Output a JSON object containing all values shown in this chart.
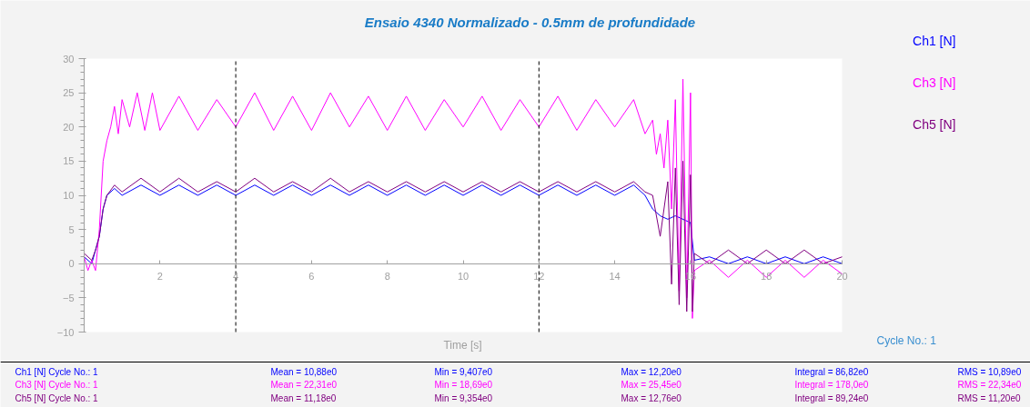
{
  "chart_data": {
    "type": "line",
    "title": "Ensaio 4340 Normalizado - 0.5mm de profundidade",
    "xlabel": "Time [s]",
    "xlim": [
      0,
      20
    ],
    "xticks": [
      2,
      4,
      6,
      8,
      10,
      12,
      14,
      16,
      18,
      20
    ],
    "ylim": [
      -10,
      30
    ],
    "yticks": [
      -10,
      -5,
      0,
      5,
      10,
      15,
      20,
      25,
      30
    ],
    "grid": false,
    "line_style": "solid",
    "marker": "none",
    "series": [
      {
        "name": "Ch1 [N]",
        "color": "#0000ff",
        "x": [
          0,
          0.2,
          0.3,
          0.4,
          0.5,
          0.6,
          0.8,
          1,
          1.5,
          2,
          2.5,
          3,
          3.5,
          4,
          4.5,
          5,
          5.5,
          6,
          6.5,
          7,
          7.5,
          8,
          8.5,
          9,
          9.5,
          10,
          10.5,
          11,
          11.5,
          12,
          12.5,
          13,
          13.5,
          14,
          14.5,
          14.8,
          15,
          15.2,
          15.4,
          15.6,
          16,
          16.1,
          16.5,
          17,
          17.5,
          18,
          18.5,
          19,
          19.5,
          20
        ],
        "values": [
          1,
          0,
          2,
          4,
          8,
          10,
          11,
          10,
          11.5,
          10,
          11.5,
          10,
          11.5,
          10,
          11.5,
          10,
          11.5,
          10,
          11.5,
          10,
          11.5,
          10,
          11.5,
          10,
          11.5,
          10,
          11.5,
          10,
          11.5,
          10,
          11.5,
          10,
          11.5,
          10,
          11.5,
          10,
          8,
          7,
          6.5,
          7,
          6,
          0.5,
          1,
          0,
          1,
          0,
          1,
          0,
          1,
          0
        ]
      },
      {
        "name": "Ch3 [N]",
        "color": "#ff00ff",
        "x": [
          0,
          0.1,
          0.2,
          0.3,
          0.4,
          0.5,
          0.6,
          0.7,
          0.8,
          0.9,
          1,
          1.2,
          1.4,
          1.6,
          1.8,
          2,
          2.5,
          3,
          3.5,
          4,
          4.5,
          5,
          5.5,
          6,
          6.5,
          7,
          7.5,
          8,
          8.5,
          9,
          9.5,
          10,
          10.5,
          11,
          11.5,
          12,
          12.5,
          13,
          13.5,
          14,
          14.5,
          14.8,
          15,
          15.1,
          15.2,
          15.3,
          15.4,
          15.5,
          15.6,
          15.7,
          15.8,
          15.9,
          16,
          16.05,
          16.1,
          16.5,
          17,
          17.5,
          18,
          18.5,
          19,
          19.5,
          20
        ],
        "values": [
          1,
          -1,
          0.5,
          -1,
          5,
          15,
          18,
          20,
          23,
          19,
          24,
          20,
          25,
          19.5,
          25,
          19.5,
          24.5,
          19.5,
          24,
          20,
          25,
          19.5,
          24.5,
          19.5,
          25,
          20,
          24.5,
          19.5,
          24.5,
          19.5,
          24,
          20,
          24.5,
          19.5,
          24,
          20,
          24.5,
          19.5,
          24,
          20,
          24,
          19,
          21,
          16,
          19,
          14,
          21,
          8,
          24,
          -4,
          27,
          -5,
          25,
          -8,
          -1,
          0.5,
          -2,
          0.5,
          -2,
          0.5,
          -2,
          0.5,
          -1.5
        ]
      },
      {
        "name": "Ch5 [N]",
        "color": "#800080",
        "x": [
          0,
          0.2,
          0.3,
          0.4,
          0.5,
          0.6,
          0.8,
          1,
          1.5,
          2,
          2.5,
          3,
          3.5,
          4,
          4.5,
          5,
          5.5,
          6,
          6.5,
          7,
          7.5,
          8,
          8.5,
          9,
          9.5,
          10,
          10.5,
          11,
          11.5,
          12,
          12.5,
          13,
          13.5,
          14,
          14.5,
          14.8,
          15,
          15.2,
          15.4,
          15.5,
          15.6,
          15.7,
          15.8,
          15.9,
          16,
          16.05,
          16.1,
          16.5,
          17,
          17.5,
          18,
          18.5,
          19,
          19.5,
          20
        ],
        "values": [
          1.5,
          0.5,
          2,
          4,
          8,
          10,
          11.5,
          10.5,
          12.5,
          10.5,
          12.5,
          10.5,
          12,
          10.5,
          12.5,
          10.5,
          12,
          10.5,
          12.5,
          10.5,
          12,
          10.5,
          12,
          10.5,
          12,
          10.5,
          12,
          10.5,
          12,
          10.5,
          12,
          10.5,
          12,
          10.5,
          12,
          10.5,
          10,
          4,
          12,
          -3,
          14,
          -6,
          15,
          -7,
          13,
          -7,
          1.5,
          0,
          2,
          0,
          2,
          0,
          2,
          0,
          1
        ]
      }
    ],
    "ref_lines": [
      {
        "axis": "x",
        "value": 4,
        "color": "#000000",
        "line_style": "dashed"
      },
      {
        "axis": "x",
        "value": 12,
        "color": "#000000",
        "line_style": "dashed"
      }
    ],
    "annotations": [
      "Cycle No.: 1",
      "Ch1 [N] Cycle No.: 1",
      "Mean = 10,88e0",
      "Min = 9,407e0",
      "Max = 12,20e0",
      "Integral = 86,82e0",
      "RMS = 10,89e0",
      "Ch3 [N] Cycle No.: 1",
      "Mean = 22,31e0",
      "Min = 18,69e0",
      "Max = 25,45e0",
      "Integral = 178,0e0",
      "RMS = 22,34e0",
      "Ch5 [N] Cycle No.: 1",
      "Mean = 11,18e0",
      "Min = 9,354e0",
      "Max = 12,76e0",
      "Integral = 89,24e0",
      "RMS = 11,20e0"
    ]
  }
}
